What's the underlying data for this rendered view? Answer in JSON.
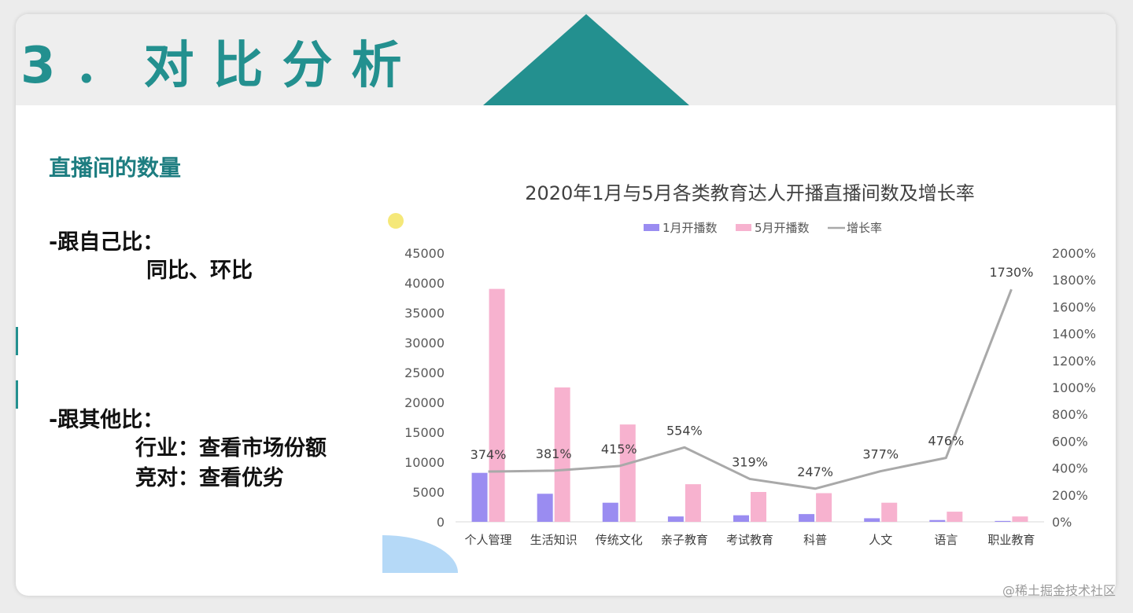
{
  "slide": {
    "page_title": "3．对比分析",
    "section_title": "直播间的数量",
    "point1_title": "-跟自己比：",
    "point1_sub": "同比、环比",
    "point2_title": "-跟其他比：",
    "point2_line1": "行业：查看市场份额",
    "point2_line2": "竞对：查看优劣",
    "watermark": "@稀土掘金技术社区",
    "accent_color": "#23908f"
  },
  "chart_data": {
    "type": "bar",
    "title": "2020年1月与5月各类教育达人开播直播间数及增长率",
    "categories": [
      "个人管理",
      "生活知识",
      "传统文化",
      "亲子教育",
      "考试教育",
      "科普",
      "人文",
      "语言",
      "职业教育"
    ],
    "series": [
      {
        "name": "1月开播数",
        "type": "bar",
        "axis": "left",
        "color": "#9a8cf1",
        "values": [
          8200,
          4700,
          3200,
          900,
          1100,
          1300,
          600,
          300,
          150
        ]
      },
      {
        "name": "5月开播数",
        "type": "bar",
        "axis": "left",
        "color": "#f7b2cf",
        "values": [
          39000,
          22500,
          16300,
          6300,
          5000,
          4800,
          3200,
          1700,
          900
        ]
      },
      {
        "name": "增长率",
        "type": "line",
        "axis": "right",
        "color": "#a9a9a9",
        "values": [
          374,
          381,
          415,
          554,
          319,
          247,
          377,
          476,
          1730
        ],
        "labels": [
          "374%",
          "381%",
          "415%",
          "554%",
          "319%",
          "247%",
          "377%",
          "476%",
          "1730%"
        ]
      }
    ],
    "left_axis": {
      "ylim": [
        0,
        45000
      ],
      "ticks": [
        "0",
        "5000",
        "10000",
        "15000",
        "20000",
        "25000",
        "30000",
        "35000",
        "40000",
        "45000"
      ]
    },
    "right_axis": {
      "ylim": [
        0,
        2000
      ],
      "ticks": [
        "0%",
        "200%",
        "400%",
        "600%",
        "800%",
        "1000%",
        "1200%",
        "1400%",
        "1600%",
        "1800%",
        "2000%"
      ]
    },
    "legend_position": "top",
    "grid": false
  }
}
